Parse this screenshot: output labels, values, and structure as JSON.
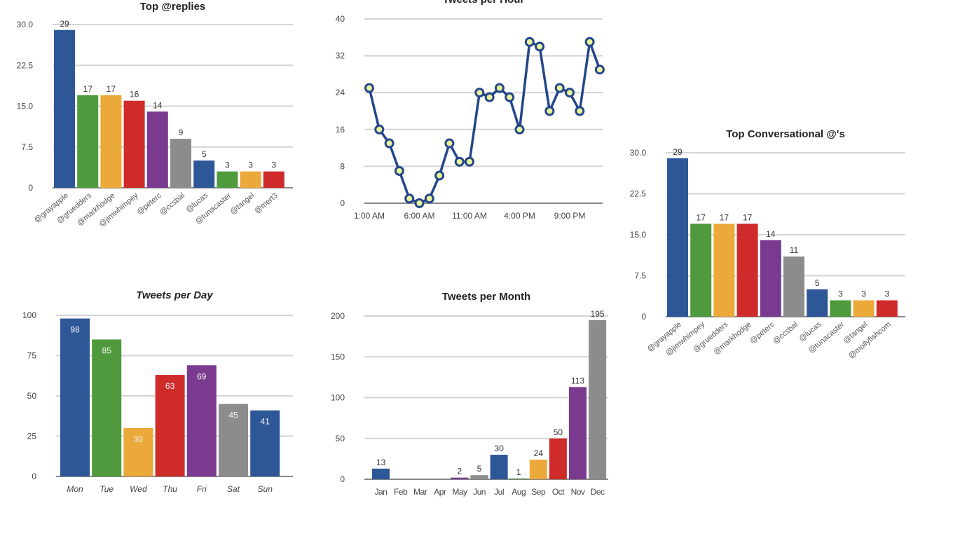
{
  "colors": [
    "#2e5797",
    "#4e9a3c",
    "#eba93a",
    "#cf2b2b",
    "#7a3a8f",
    "#8c8c8c"
  ],
  "chart_data": [
    {
      "id": "replies",
      "type": "bar",
      "title": "Top @replies",
      "categories": [
        "@grayapple",
        "@gruedders",
        "@markhodge",
        "@jimwhimpey",
        "@peterc",
        "@ccsbal",
        "@lucas",
        "@tunacaster",
        "@tangel",
        "@mert3"
      ],
      "values": [
        29,
        17,
        17,
        16,
        14,
        9,
        5,
        3,
        3,
        3
      ],
      "yticks": [
        "0",
        "7.5",
        "15.0",
        "22.5",
        "30.0"
      ],
      "ylim": [
        0,
        30
      ],
      "xlabel": "",
      "ylabel": "",
      "grid": true
    },
    {
      "id": "hour",
      "type": "line",
      "title": "Tweets per Hour",
      "xticks": [
        "1:00 AM",
        "6:00 AM",
        "11:00 AM",
        "4:00 PM",
        "9:00 PM"
      ],
      "values": [
        25,
        16,
        13,
        7,
        1,
        0,
        1,
        6,
        13,
        9,
        9,
        24,
        23,
        25,
        23,
        16,
        35,
        34,
        20,
        25,
        24,
        20,
        35,
        29
      ],
      "yticks": [
        "0",
        "8",
        "16",
        "24",
        "32",
        "40"
      ],
      "ylim": [
        0,
        40
      ],
      "xlabel": "",
      "ylabel": "",
      "grid": true
    },
    {
      "id": "conv",
      "type": "bar",
      "title": "Top Conversational @'s",
      "categories": [
        "@grayapple",
        "@jimwhimpey",
        "@gruedders",
        "@markhodge",
        "@peterc",
        "@ccsbal",
        "@lucas",
        "@tunacaster",
        "@tangel",
        "@mollyfishcom"
      ],
      "values": [
        29,
        17,
        17,
        17,
        14,
        11,
        5,
        3,
        3,
        3
      ],
      "yticks": [
        "0",
        "7.5",
        "15.0",
        "22.5",
        "30.0"
      ],
      "ylim": [
        0,
        30
      ],
      "xlabel": "",
      "ylabel": "",
      "grid": true
    },
    {
      "id": "day",
      "type": "bar",
      "title": "Tweets per Day",
      "categories": [
        "Mon",
        "Tue",
        "Wed",
        "Thu",
        "Fri",
        "Sat",
        "Sun"
      ],
      "values": [
        98,
        85,
        30,
        63,
        69,
        45,
        41
      ],
      "yticks": [
        "0",
        "25",
        "50",
        "75",
        "100"
      ],
      "ylim": [
        0,
        100
      ],
      "xlabel": "",
      "ylabel": "",
      "grid": true
    },
    {
      "id": "month",
      "type": "bar",
      "title": "Tweets per Month",
      "categories": [
        "Jan",
        "Feb",
        "Mar",
        "Apr",
        "May",
        "Jun",
        "Jul",
        "Aug",
        "Sep",
        "Oct",
        "Nov",
        "Dec"
      ],
      "values": [
        13,
        0,
        0,
        0,
        2,
        5,
        30,
        1,
        24,
        50,
        113,
        195
      ],
      "yticks": [
        "0",
        "50",
        "100",
        "150",
        "200"
      ],
      "ylim": [
        0,
        200
      ],
      "xlabel": "",
      "ylabel": "",
      "grid": true
    }
  ]
}
